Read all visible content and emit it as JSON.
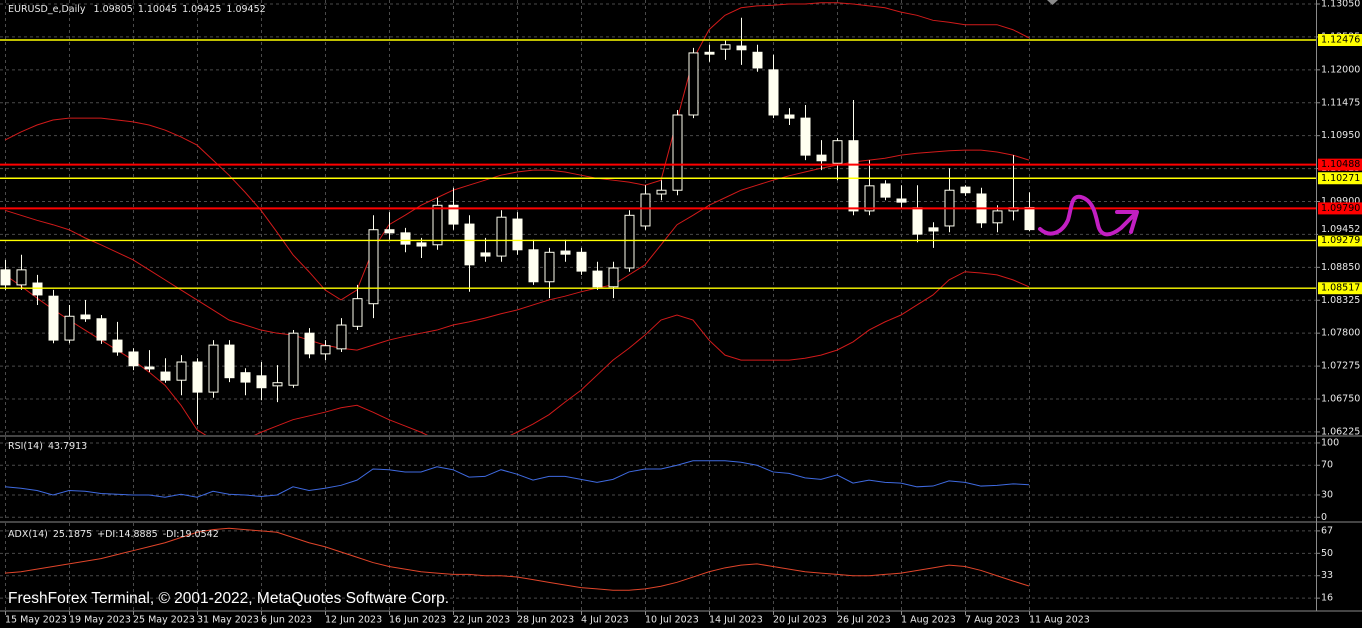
{
  "chart_data": [
    {
      "type": "candlestick",
      "title": "EURUSD_e,Daily",
      "categories": [
        "15 May 2023",
        null,
        null,
        null,
        "19 May 2023",
        null,
        null,
        null,
        "25 May 2023",
        null,
        null,
        null,
        "31 May 2023",
        null,
        null,
        null,
        "6 Jun 2023",
        null,
        null,
        null,
        "12 Jun 2023",
        null,
        null,
        null,
        "16 Jun 2023",
        null,
        null,
        null,
        "22 Jun 2023",
        null,
        null,
        null,
        "28 Jun 2023",
        null,
        null,
        null,
        "4 Jul 2023",
        null,
        null,
        null,
        "10 Jul 2023",
        null,
        null,
        null,
        "14 Jul 2023",
        null,
        null,
        null,
        "20 Jul 2023",
        null,
        null,
        null,
        "26 Jul 2023",
        null,
        null,
        null,
        "1 Aug 2023",
        null,
        null,
        null,
        "7 Aug 2023",
        null,
        null,
        null,
        "11 Aug 2023"
      ],
      "open": [
        1.0881,
        1.0857,
        1.086,
        1.0839,
        1.0769,
        1.0809,
        1.0803,
        1.0769,
        1.075,
        1.0726,
        1.0718,
        1.0705,
        1.0734,
        1.0686,
        1.0761,
        1.0717,
        1.0712,
        1.0696,
        1.0697,
        1.078,
        1.0747,
        1.0755,
        1.0791,
        1.0827,
        1.0945,
        1.094,
        1.0924,
        1.0921,
        1.0984,
        1.0954,
        1.0908,
        1.0903,
        1.0962,
        1.0913,
        1.0862,
        1.0911,
        1.0909,
        1.0879,
        1.0854,
        1.0884,
        1.0951,
        1.1002,
        1.1008,
        1.1128,
        1.1228,
        1.1233,
        1.1238,
        1.1228,
        1.12,
        1.1128,
        1.1123,
        1.1064,
        1.1051,
        1.1087,
        1.0975,
        1.1018,
        1.0994,
        1.098,
        1.0948,
        1.0951,
        1.1013,
        1.1002,
        1.0956,
        1.0975,
        1.09805
      ],
      "high": [
        1.0897,
        1.0905,
        1.0873,
        1.0849,
        1.0825,
        1.0833,
        1.0809,
        1.0798,
        1.0756,
        1.0753,
        1.074,
        1.0745,
        1.074,
        1.0769,
        1.0769,
        1.0724,
        1.0734,
        1.0729,
        1.0785,
        1.0788,
        1.0769,
        1.0804,
        1.0857,
        1.0968,
        1.0973,
        1.0948,
        1.0932,
        1.0996,
        1.1012,
        1.0968,
        1.0932,
        1.0976,
        1.0973,
        1.0929,
        1.0916,
        1.0929,
        1.0916,
        1.0894,
        1.0894,
        1.0976,
        1.1016,
        1.1024,
        1.1136,
        1.1235,
        1.124,
        1.1248,
        1.1283,
        1.124,
        1.1224,
        1.1139,
        1.1144,
        1.1088,
        1.1091,
        1.1152,
        1.1056,
        1.1024,
        1.1016,
        1.1016,
        1.0957,
        1.1043,
        1.1016,
        1.1012,
        1.0984,
        1.1064,
        1.10045
      ],
      "low": [
        1.0849,
        1.0849,
        1.0825,
        1.0764,
        1.0764,
        1.0798,
        1.0763,
        1.0744,
        1.0721,
        1.0718,
        1.0701,
        1.0681,
        1.0634,
        1.0677,
        1.0702,
        1.0681,
        1.0673,
        1.067,
        1.0693,
        1.074,
        1.0737,
        1.075,
        1.0785,
        1.0804,
        1.0929,
        1.0909,
        1.09,
        1.0913,
        1.0945,
        1.0846,
        1.0894,
        1.0894,
        1.0905,
        1.0857,
        1.0836,
        1.0894,
        1.0873,
        1.0849,
        1.0836,
        1.0878,
        1.0945,
        1.0992,
        1.1,
        1.1123,
        1.1213,
        1.1216,
        1.1208,
        1.1197,
        1.1123,
        1.1112,
        1.1056,
        1.104,
        1.1024,
        1.0968,
        1.0968,
        1.0992,
        1.098,
        1.0925,
        1.0916,
        1.0941,
        1.0999,
        1.0948,
        1.0941,
        1.096,
        1.09425
      ],
      "close": [
        1.0857,
        1.0881,
        1.0841,
        1.0769,
        1.0807,
        1.0803,
        1.0769,
        1.075,
        1.0728,
        1.0723,
        1.0705,
        1.0734,
        1.0686,
        1.0761,
        1.0709,
        1.0702,
        1.0693,
        1.0701,
        1.078,
        1.0747,
        1.076,
        1.0793,
        1.0835,
        1.0945,
        1.094,
        1.0922,
        1.0919,
        1.0984,
        1.0954,
        1.0889,
        1.0903,
        1.0965,
        1.0913,
        1.0862,
        1.0909,
        1.0906,
        1.0879,
        1.0854,
        1.0884,
        1.0968,
        1.1002,
        1.1008,
        1.1128,
        1.1227,
        1.1225,
        1.124,
        1.1232,
        1.1203,
        1.1128,
        1.1123,
        1.1064,
        1.1055,
        1.1087,
        1.0975,
        1.1015,
        1.0997,
        1.0989,
        1.0938,
        1.0943,
        1.1008,
        1.1004,
        1.0956,
        1.0975,
        1.098,
        1.09452
      ],
      "color": "#fffff0",
      "series": [
        {
          "color": "#d11a1a",
          "values": [
            1.1088,
            1.1101,
            1.1112,
            1.112,
            1.1123,
            1.1123,
            1.1123,
            1.112,
            1.1117,
            1.1112,
            1.1104,
            1.1093,
            1.108,
            1.1056,
            1.1032,
            1.1005,
            1.0976,
            1.0941,
            1.0905,
            1.0878,
            1.0849,
            1.0833,
            1.0849,
            1.0913,
            1.0953,
            1.0968,
            1.0984,
            1.0996,
            1.1008,
            1.1016,
            1.1024,
            1.1032,
            1.1037,
            1.104,
            1.104,
            1.1037,
            1.1032,
            1.1027,
            1.1024,
            1.1021,
            1.1016,
            1.1024,
            1.112,
            1.1216,
            1.1264,
            1.1287,
            1.1299,
            1.1302,
            1.1303,
            1.1305,
            1.1305,
            1.1307,
            1.1307,
            1.1305,
            1.1302,
            1.1299,
            1.1292,
            1.1287,
            1.1279,
            1.1276,
            1.1272,
            1.1272,
            1.1272,
            1.1264,
            1.1251
          ]
        },
        {
          "color": "#d11a1a",
          "values": [
            1.0976,
            1.0968,
            1.096,
            1.0953,
            1.0945,
            1.0932,
            1.0921,
            1.0909,
            1.0897,
            1.0881,
            1.0865,
            1.0849,
            1.0833,
            1.0817,
            1.0801,
            1.0793,
            1.0785,
            1.078,
            1.0777,
            1.0769,
            1.0761,
            1.0756,
            1.0753,
            1.0761,
            1.0769,
            1.0775,
            1.078,
            1.0785,
            1.0793,
            1.0798,
            1.0804,
            1.0811,
            1.0817,
            1.0825,
            1.0833,
            1.0839,
            1.0846,
            1.0852,
            1.0857,
            1.0873,
            1.0889,
            1.0921,
            1.0953,
            1.0968,
            1.0984,
            1.0996,
            1.1008,
            1.1016,
            1.1024,
            1.1031,
            1.1037,
            1.1043,
            1.1048,
            1.1053,
            1.1056,
            1.1059,
            1.1064,
            1.1067,
            1.1069,
            1.1071,
            1.1072,
            1.1072,
            1.1069,
            1.1064,
            1.1056
          ]
        },
        {
          "color": "#d11a1a",
          "values": [
            1.0873,
            1.0855,
            1.0836,
            1.0818,
            1.0801,
            1.0785,
            1.0769,
            1.0753,
            1.0737,
            1.0718,
            1.0697,
            1.0665,
            1.0626,
            1.061,
            1.0602,
            1.061,
            1.0622,
            1.0632,
            1.0642,
            1.0648,
            1.0654,
            1.0661,
            1.0665,
            1.0654,
            1.0642,
            1.0632,
            1.0622,
            1.061,
            1.0602,
            1.0602,
            1.0602,
            1.061,
            1.0622,
            1.0635,
            1.065,
            1.067,
            1.0689,
            1.0713,
            1.0737,
            1.0756,
            1.0777,
            1.0801,
            1.0809,
            1.0801,
            1.0769,
            1.0745,
            1.0737,
            1.0737,
            1.0737,
            1.0737,
            1.074,
            1.0745,
            1.0753,
            1.0766,
            1.0785,
            1.0798,
            1.0809,
            1.0825,
            1.0841,
            1.0865,
            1.0878,
            1.0876,
            1.0873,
            1.0865,
            1.0854
          ]
        }
      ],
      "levels": [
        {
          "value": 1.12476,
          "color": "#ffff00"
        },
        {
          "value": 1.10488,
          "color": "#ff0000"
        },
        {
          "value": 1.10271,
          "color": "#ffff00"
        },
        {
          "value": 1.0979,
          "label": "1.09790",
          "color": "#ff0000"
        },
        {
          "value": 1.09279,
          "color": "#ffff00"
        },
        {
          "value": 1.08517,
          "color": "#ffff00"
        }
      ],
      "ylim": [
        1.06176,
        1.13114
      ],
      "yticks": [
        {
          "value": 1.1305,
          "label": "1.13050"
        },
        1.12525,
        {
          "value": 1.12,
          "label": "1.12000"
        },
        1.11475,
        {
          "value": 1.1095,
          "label": "1.10950"
        },
        1.10425,
        {
          "value": 1.099,
          "label": "1.09900"
        },
        1.09375,
        {
          "value": 1.0885,
          "label": "1.08850"
        },
        1.08325,
        {
          "value": 1.078,
          "label": "1.07800"
        },
        1.07275,
        {
          "value": 1.0675,
          "label": "1.06750"
        },
        1.06225
      ],
      "grid": true
    },
    {
      "type": "line",
      "title": "RSI(14)",
      "series": [
        {
          "color": "#3f6ae0",
          "values": [
            41,
            39,
            36,
            30,
            36,
            35,
            32,
            31,
            30,
            30,
            27,
            31,
            27,
            35,
            31,
            30,
            28,
            30,
            41,
            36,
            39,
            43,
            50,
            65,
            64,
            61,
            61,
            68,
            64,
            54,
            55,
            64,
            58,
            50,
            55,
            55,
            51,
            47,
            51,
            61,
            65,
            65,
            70,
            76,
            76,
            76,
            74,
            70,
            61,
            59,
            53,
            51,
            57,
            46,
            50,
            47,
            46,
            41,
            42,
            49,
            47,
            42,
            43,
            45,
            43.7913
          ]
        }
      ],
      "ylim": [
        -5,
        108
      ],
      "yticks": [
        0,
        30,
        70,
        100
      ],
      "grid": true
    },
    {
      "type": "line",
      "title": "ADX(14)",
      "plus_di_label": "+DI:",
      "plus_di": 14.8885,
      "minus_di_label": "-DI:",
      "minus_di": 19.0542,
      "series": [
        {
          "color": "#e0452a",
          "values": [
            35,
            36,
            38,
            40,
            42,
            44,
            46,
            49,
            52,
            55,
            58,
            62,
            66,
            68,
            69,
            68,
            67,
            66,
            62,
            58,
            55,
            51,
            47,
            43,
            40,
            38,
            36,
            35,
            34,
            34,
            33,
            33,
            32,
            30,
            28,
            26,
            24,
            23,
            22,
            22,
            23,
            25,
            28,
            32,
            36,
            39,
            41,
            42,
            40,
            38,
            36,
            35,
            34,
            33,
            33,
            34,
            35,
            37,
            39,
            41,
            40,
            37,
            33,
            29,
            25.1875
          ]
        }
      ],
      "ylim": [
        7,
        73
      ],
      "yticks": [
        16,
        33,
        50,
        67
      ],
      "grid": true
    }
  ],
  "footer": "FreshForex Terminal, © 2001-2022, MetaQuotes Software Corp."
}
